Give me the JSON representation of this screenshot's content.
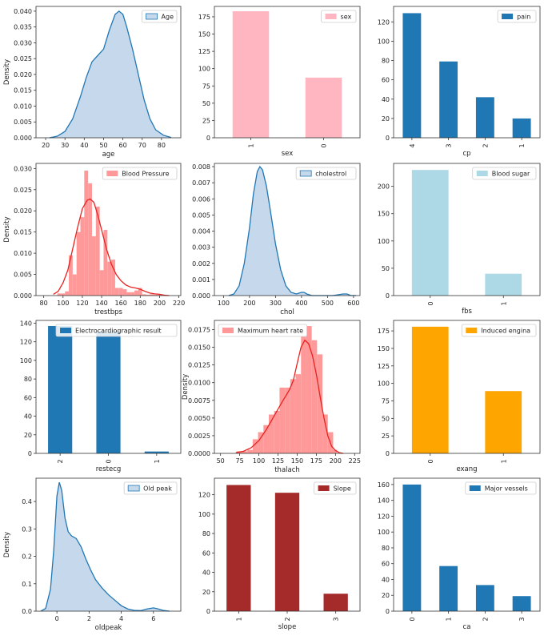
{
  "chart_data": [
    {
      "type": "area",
      "xlabel": "age",
      "ylabel": "Density",
      "legend": "Age",
      "legend_loc": "top-right",
      "color": "#1f77b4",
      "fill": "#c6d9ec",
      "xlim": [
        15,
        90
      ],
      "ylim": [
        0,
        0.0415
      ],
      "xticks": [
        "20",
        "30",
        "40",
        "50",
        "60",
        "70",
        "80"
      ],
      "yticks": [
        "0.000",
        "0.005",
        "0.010",
        "0.015",
        "0.020",
        "0.025",
        "0.030",
        "0.035",
        "0.040"
      ],
      "x": [
        22,
        26,
        30,
        34,
        38,
        41,
        44,
        47,
        50,
        53,
        56,
        58,
        60,
        62,
        65,
        68,
        71,
        74,
        77,
        81,
        85
      ],
      "y": [
        0.0,
        0.0005,
        0.002,
        0.006,
        0.013,
        0.019,
        0.024,
        0.026,
        0.028,
        0.034,
        0.039,
        0.04,
        0.039,
        0.035,
        0.028,
        0.02,
        0.012,
        0.006,
        0.0025,
        0.0008,
        0.0001
      ]
    },
    {
      "type": "bar",
      "xlabel": "sex",
      "legend": "sex",
      "legend_loc": "top-right",
      "color": "#ffb6c1",
      "categories": [
        "1",
        "0"
      ],
      "values": [
        183,
        87
      ],
      "ylim": [
        0,
        190
      ],
      "yticks": [
        "0",
        "25",
        "50",
        "75",
        "100",
        "125",
        "150",
        "175"
      ]
    },
    {
      "type": "bar",
      "xlabel": "cp",
      "legend": "pain",
      "legend_loc": "top-right",
      "color": "#1f77b4",
      "categories": [
        "4",
        "3",
        "2",
        "1"
      ],
      "values": [
        129,
        79,
        42,
        20
      ],
      "ylim": [
        0,
        136
      ],
      "yticks": [
        "0",
        "20",
        "40",
        "60",
        "80",
        "100",
        "120"
      ]
    },
    {
      "type": "bar",
      "histogram": true,
      "xlabel": "trestbps",
      "ylabel": "Density",
      "legend": "Blood Pressure",
      "legend_loc": "top-right",
      "color": "#ff9999",
      "line_color": "#e8221f",
      "xlim": [
        72,
        222
      ],
      "ylim": [
        0,
        0.0312
      ],
      "xticks": [
        "80",
        "100",
        "120",
        "140",
        "160",
        "180",
        "200",
        "220"
      ],
      "yticks": [
        "0.000",
        "0.005",
        "0.010",
        "0.015",
        "0.020",
        "0.025",
        "0.030"
      ],
      "bin_edges": [
        94,
        98,
        102,
        106,
        110,
        114,
        118,
        122,
        126,
        130,
        134,
        138,
        142,
        146,
        150,
        154,
        158,
        162,
        166,
        170,
        174,
        178,
        182,
        186,
        190,
        194,
        198,
        202
      ],
      "values": [
        0.0005,
        0.0005,
        0.001,
        0.0095,
        0.005,
        0.015,
        0.0185,
        0.0295,
        0.0265,
        0.014,
        0.021,
        0.006,
        0.0155,
        0.008,
        0.0085,
        0.0018,
        0.0018,
        0.0015,
        0.0008,
        0.0008,
        0.0012,
        0.0018,
        0.0003,
        0.0002,
        0.0003,
        0.0002,
        0.0002
      ],
      "kde_x": [
        90,
        95,
        100,
        105,
        110,
        115,
        120,
        125,
        128,
        132,
        136,
        140,
        145,
        150,
        155,
        160,
        165,
        170,
        175,
        180,
        185,
        190,
        195,
        200,
        205,
        210
      ],
      "kde_y": [
        0.0003,
        0.001,
        0.003,
        0.006,
        0.011,
        0.016,
        0.0205,
        0.0225,
        0.0228,
        0.022,
        0.019,
        0.0155,
        0.011,
        0.0075,
        0.005,
        0.0035,
        0.0025,
        0.002,
        0.0018,
        0.0015,
        0.001,
        0.0006,
        0.0004,
        0.0003,
        0.0001,
        0.0
      ]
    },
    {
      "type": "area",
      "xlabel": "chol",
      "legend": "cholestrol",
      "legend_loc": "top-right",
      "color": "#1f77b4",
      "fill": "#c6d9ec",
      "xlim": [
        65,
        625
      ],
      "ylim": [
        0,
        0.0082
      ],
      "xticks": [
        "100",
        "200",
        "300",
        "400",
        "500",
        "600"
      ],
      "yticks": [
        "0.000",
        "0.001",
        "0.002",
        "0.003",
        "0.004",
        "0.005",
        "0.006",
        "0.007",
        "0.008"
      ],
      "x": [
        120,
        140,
        160,
        180,
        200,
        215,
        230,
        240,
        250,
        265,
        280,
        300,
        320,
        340,
        360,
        380,
        400,
        410,
        420,
        440,
        480,
        520,
        560,
        575,
        590,
        610
      ],
      "y": [
        0.0,
        0.0001,
        0.0006,
        0.002,
        0.0042,
        0.0063,
        0.0077,
        0.008,
        0.0078,
        0.0068,
        0.0053,
        0.0032,
        0.0016,
        0.0006,
        0.0002,
        0.0001,
        0.0002,
        0.0002,
        0.0001,
        0.0,
        0.0,
        0.0,
        0.0001,
        0.0001,
        0.0,
        0.0
      ]
    },
    {
      "type": "bar",
      "xlabel": "fbs",
      "legend": "Blood sugar",
      "legend_loc": "top-right",
      "color": "#add8e6",
      "categories": [
        "0",
        "1"
      ],
      "values": [
        230,
        40
      ],
      "ylim": [
        0,
        242
      ],
      "yticks": [
        "0",
        "50",
        "100",
        "150",
        "200"
      ]
    },
    {
      "type": "bar",
      "xlabel": "restecg",
      "legend": "Electrocardiographic result",
      "legend_loc": "top-right",
      "color": "#1f77b4",
      "categories": [
        "2",
        "0",
        "1"
      ],
      "values": [
        137,
        131,
        2
      ],
      "ylim": [
        0,
        143
      ],
      "yticks": [
        "0",
        "20",
        "40",
        "60",
        "80",
        "100",
        "120",
        "140"
      ]
    },
    {
      "type": "bar",
      "histogram": true,
      "xlabel": "thalach",
      "ylabel": "Density",
      "legend": "Maximum heart rate",
      "legend_loc": "top-left",
      "color": "#ff9999",
      "line_color": "#e8221f",
      "xlim": [
        42,
        232
      ],
      "ylim": [
        0,
        0.0188
      ],
      "xticks": [
        "50",
        "75",
        "100",
        "125",
        "150",
        "175",
        "200",
        "225"
      ],
      "yticks": [
        "0.0000",
        "0.0025",
        "0.0050",
        "0.0075",
        "0.0100",
        "0.0125",
        "0.0150",
        "0.0175"
      ],
      "bin_edges": [
        71,
        78,
        85,
        92,
        99,
        106,
        113,
        120,
        127,
        134,
        141,
        148,
        155,
        162,
        169,
        176,
        183,
        190,
        197,
        202
      ],
      "values": [
        0.0003,
        0.0003,
        0.0005,
        0.002,
        0.003,
        0.004,
        0.0055,
        0.006,
        0.0093,
        0.0093,
        0.0105,
        0.0112,
        0.0165,
        0.018,
        0.016,
        0.014,
        0.0055,
        0.003,
        0.0005
      ],
      "kde_x": [
        70,
        80,
        90,
        100,
        110,
        120,
        130,
        140,
        145,
        150,
        155,
        160,
        165,
        170,
        175,
        180,
        185,
        190,
        195,
        200,
        205,
        210
      ],
      "kde_y": [
        0.0001,
        0.0003,
        0.0008,
        0.0018,
        0.0034,
        0.0053,
        0.0072,
        0.009,
        0.0103,
        0.0127,
        0.015,
        0.016,
        0.0155,
        0.0138,
        0.0112,
        0.008,
        0.005,
        0.0025,
        0.001,
        0.0004,
        0.0001,
        0.0
      ]
    },
    {
      "type": "bar",
      "xlabel": "exang",
      "legend": "Induced engina",
      "legend_loc": "top-right",
      "color": "#ffa500",
      "categories": [
        "0",
        "1"
      ],
      "values": [
        181,
        89
      ],
      "ylim": [
        0,
        190
      ],
      "yticks": [
        "0",
        "25",
        "50",
        "75",
        "100",
        "125",
        "150",
        "175"
      ]
    },
    {
      "type": "area",
      "xlabel": "oldpeak",
      "ylabel": "Density",
      "legend": "Old peak",
      "legend_loc": "top-right",
      "color": "#1f77b4",
      "fill": "#c6d9ec",
      "xlim": [
        -1.3,
        7.7
      ],
      "ylim": [
        0,
        0.485
      ],
      "xticks": [
        "0",
        "2",
        "4",
        "6"
      ],
      "yticks": [
        "0.0",
        "0.1",
        "0.2",
        "0.3",
        "0.4"
      ],
      "x": [
        -1.0,
        -0.7,
        -0.4,
        -0.2,
        0.0,
        0.15,
        0.3,
        0.5,
        0.7,
        0.9,
        1.2,
        1.5,
        1.8,
        2.1,
        2.4,
        2.8,
        3.2,
        3.6,
        4.0,
        4.4,
        4.8,
        5.2,
        5.6,
        6.0,
        6.3,
        6.6,
        7.0
      ],
      "y": [
        0.0,
        0.01,
        0.08,
        0.22,
        0.42,
        0.47,
        0.44,
        0.34,
        0.29,
        0.275,
        0.265,
        0.235,
        0.19,
        0.15,
        0.115,
        0.085,
        0.06,
        0.04,
        0.02,
        0.008,
        0.003,
        0.002,
        0.008,
        0.012,
        0.008,
        0.003,
        0.0
      ]
    },
    {
      "type": "bar",
      "xlabel": "slope",
      "legend": "Slope",
      "legend_loc": "top-right",
      "color": "#a52a2a",
      "categories": [
        "1",
        "2",
        "3"
      ],
      "values": [
        130,
        122,
        18
      ],
      "ylim": [
        0,
        137
      ],
      "yticks": [
        "0",
        "20",
        "40",
        "60",
        "80",
        "100",
        "120"
      ]
    },
    {
      "type": "bar",
      "xlabel": "ca",
      "legend": "Major vessels",
      "legend_loc": "top-right",
      "color": "#1f77b4",
      "categories": [
        "0",
        "1",
        "2",
        "3"
      ],
      "values": [
        160,
        57,
        33,
        19
      ],
      "ylim": [
        0,
        168
      ],
      "yticks": [
        "0",
        "20",
        "40",
        "60",
        "80",
        "100",
        "120",
        "140",
        "160"
      ]
    }
  ]
}
